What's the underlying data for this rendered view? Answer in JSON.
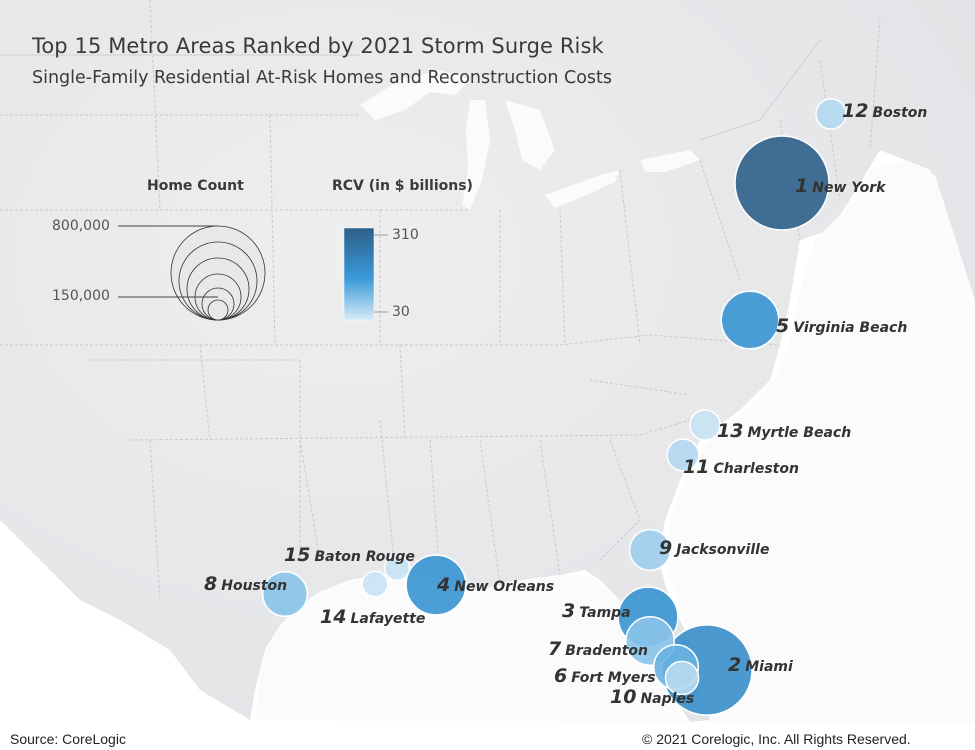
{
  "title": "Top 15 Metro Areas Ranked by 2021 Storm Surge Risk",
  "subtitle": "Single-Family Residential At-Risk Homes and Reconstruction Costs",
  "legend": {
    "size_title": "Home Count",
    "size_max_label": "800,000",
    "size_min_label": "150,000",
    "color_title": "RCV (in $ billions)",
    "color_max_label": "310",
    "color_min_label": "30",
    "color_low": "#d7ebf8",
    "color_mid": "#3a9ad9",
    "color_high": "#2d5f8a"
  },
  "metros": [
    {
      "rank": "1",
      "name": "New York",
      "rcv_level": 1.0,
      "home_count_level": 1.0
    },
    {
      "rank": "2",
      "name": "Miami",
      "rcv_level": 0.6,
      "home_count_level": 0.95
    },
    {
      "rank": "3",
      "name": "Tampa",
      "rcv_level": 0.55,
      "home_count_level": 0.55
    },
    {
      "rank": "4",
      "name": "New Orleans",
      "rcv_level": 0.55,
      "home_count_level": 0.55
    },
    {
      "rank": "5",
      "name": "Virginia Beach",
      "rcv_level": 0.55,
      "home_count_level": 0.52
    },
    {
      "rank": "6",
      "name": "Fort Myers",
      "rcv_level": 0.35,
      "home_count_level": 0.35
    },
    {
      "rank": "7",
      "name": "Bradenton",
      "rcv_level": 0.25,
      "home_count_level": 0.4
    },
    {
      "rank": "8",
      "name": "Houston",
      "rcv_level": 0.25,
      "home_count_level": 0.35
    },
    {
      "rank": "9",
      "name": "Jacksonville",
      "rcv_level": 0.18,
      "home_count_level": 0.3
    },
    {
      "rank": "10",
      "name": "Naples",
      "rcv_level": 0.1,
      "home_count_level": 0.2
    },
    {
      "rank": "11",
      "name": "Charleston",
      "rcv_level": 0.12,
      "home_count_level": 0.18
    },
    {
      "rank": "12",
      "name": "Boston",
      "rcv_level": 0.12,
      "home_count_level": 0.16
    },
    {
      "rank": "13",
      "name": "Myrtle Beach",
      "rcv_level": 0.05,
      "home_count_level": 0.16
    },
    {
      "rank": "14",
      "name": "Lafayette",
      "rcv_level": 0.05,
      "home_count_level": 0.1
    },
    {
      "rank": "15",
      "name": "Baton Rouge",
      "rcv_level": 0.05,
      "home_count_level": 0.09
    }
  ],
  "footer": {
    "source": "Source: CoreLogic",
    "copyright": "© 2021 Corelogic, Inc. All Rights Reserved."
  }
}
